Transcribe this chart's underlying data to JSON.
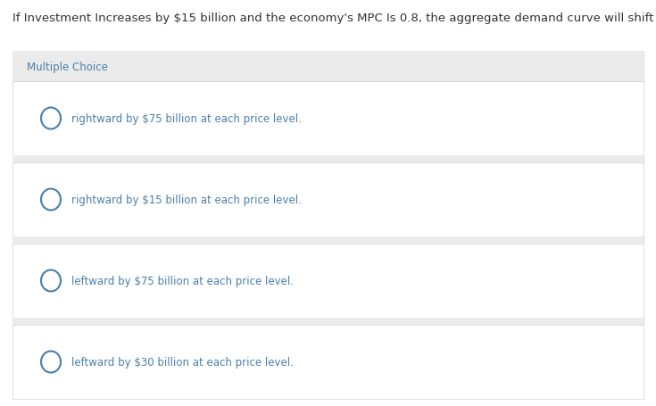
{
  "title": "If Investment Increases by $15 billion and the economy's MPC Is 0.8, the aggregate demand curve will shift",
  "title_color": "#333333",
  "title_fontsize": 9.5,
  "section_label": "Multiple Choice",
  "section_label_color": "#4a7fab",
  "section_label_fontsize": 8.5,
  "bg_color": "#ffffff",
  "section_header_color": "#ebebeb",
  "option_bg_color": "#f7f7f7",
  "option_white_color": "#ffffff",
  "separator_color": "#d8d8d8",
  "outer_bg_color": "#ebebeb",
  "choices": [
    "rightward by $75 billion at each price level.",
    "rightward by $15 billion at each price level.",
    "leftward by $75 billion at each price level.",
    "leftward by $30 billion at each price level."
  ],
  "choice_color": "#4a7fab",
  "choice_fontsize": 8.5,
  "circle_edge_color": "#4a7fab",
  "circle_face_color": "#ffffff",
  "circle_lw": 1.5
}
